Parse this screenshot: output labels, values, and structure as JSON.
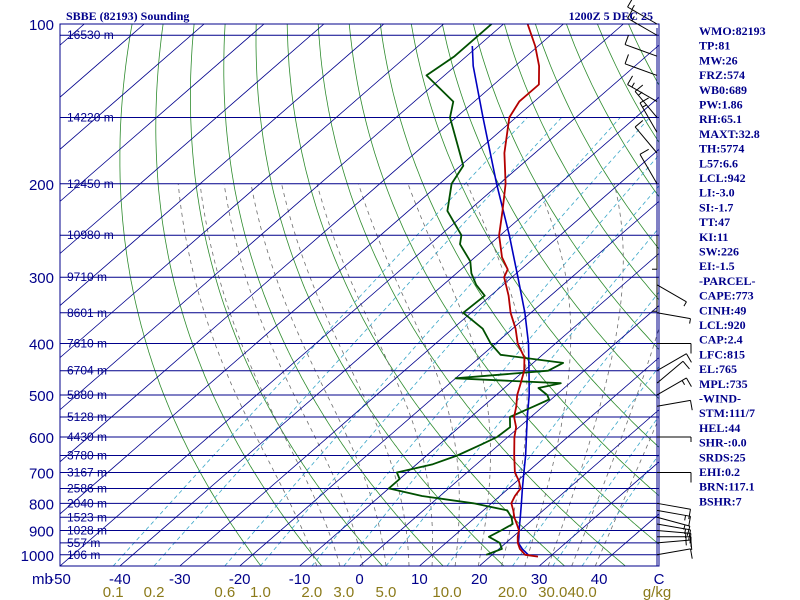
{
  "chart_data": {
    "type": "skew-t",
    "title_left": "SBBE (82193) Sounding",
    "title_right": "1200Z  5 DEC 25",
    "pressure_axis": {
      "ticks": [
        100,
        200,
        300,
        400,
        500,
        600,
        700,
        800,
        900,
        1000
      ],
      "tick_labels": [
        "100",
        "200",
        "300",
        "400",
        "500",
        "600",
        "700",
        "800",
        "900",
        "1000"
      ],
      "unit_label": "mb"
    },
    "temperature_axis": {
      "ticks": [
        -50,
        -40,
        -30,
        -20,
        -10,
        0,
        10,
        20,
        30,
        40
      ],
      "tick_labels": [
        "-50",
        "-40",
        "-30",
        "-20",
        "-10",
        "0",
        "10",
        "20",
        "30",
        "40"
      ],
      "unit_label": "C",
      "range": [
        -50,
        50
      ]
    },
    "mixing_ratio_axis": {
      "labels": [
        "0.1",
        "0.2",
        "0.6",
        "1.0",
        "2.0",
        "3.0",
        "5.0",
        "10.0",
        "20.0",
        "30.0",
        "40.0"
      ],
      "unit_label": "g/kg"
    },
    "heights": [
      {
        "p": 105,
        "label": "16530 m"
      },
      {
        "p": 150,
        "label": "14220 m"
      },
      {
        "p": 200,
        "label": "12450 m"
      },
      {
        "p": 250,
        "label": "10980 m"
      },
      {
        "p": 300,
        "label": "9710 m"
      },
      {
        "p": 350,
        "label": "8601 m"
      },
      {
        "p": 400,
        "label": "7610 m"
      },
      {
        "p": 450,
        "label": "6704 m"
      },
      {
        "p": 500,
        "label": "5880 m"
      },
      {
        "p": 550,
        "label": "5128 m"
      },
      {
        "p": 600,
        "label": "4430 m"
      },
      {
        "p": 650,
        "label": "3780 m"
      },
      {
        "p": 700,
        "label": "3167 m"
      },
      {
        "p": 750,
        "label": "2586 m"
      },
      {
        "p": 800,
        "label": "2040 m"
      },
      {
        "p": 850,
        "label": "1523 m"
      },
      {
        "p": 900,
        "label": "1028 m"
      },
      {
        "p": 950,
        "label": "557 m"
      },
      {
        "p": 1000,
        "label": "106 m"
      }
    ],
    "temperature_profile": [
      {
        "p": 1008,
        "t": 28.0
      },
      {
        "p": 1000,
        "t": 25.5
      },
      {
        "p": 975,
        "t": 23.5
      },
      {
        "p": 950,
        "t": 22.0
      },
      {
        "p": 925,
        "t": 20.8
      },
      {
        "p": 900,
        "t": 19.8
      },
      {
        "p": 875,
        "t": 18.2
      },
      {
        "p": 850,
        "t": 16.5
      },
      {
        "p": 825,
        "t": 15.0
      },
      {
        "p": 800,
        "t": 13.3
      },
      {
        "p": 775,
        "t": 12.5
      },
      {
        "p": 750,
        "t": 12.0
      },
      {
        "p": 725,
        "t": 10.2
      },
      {
        "p": 700,
        "t": 8.0
      },
      {
        "p": 650,
        "t": 4.6
      },
      {
        "p": 600,
        "t": 1.1
      },
      {
        "p": 575,
        "t": -0.5
      },
      {
        "p": 550,
        "t": -2.8
      },
      {
        "p": 525,
        "t": -4.5
      },
      {
        "p": 500,
        "t": -6.5
      },
      {
        "p": 475,
        "t": -8.2
      },
      {
        "p": 450,
        "t": -10.0
      },
      {
        "p": 425,
        "t": -12.5
      },
      {
        "p": 400,
        "t": -16.3
      },
      {
        "p": 375,
        "t": -19.5
      },
      {
        "p": 350,
        "t": -23.4
      },
      {
        "p": 325,
        "t": -27.0
      },
      {
        "p": 300,
        "t": -31.3
      },
      {
        "p": 290,
        "t": -32.2
      },
      {
        "p": 275,
        "t": -35.5
      },
      {
        "p": 250,
        "t": -40.2
      },
      {
        "p": 225,
        "t": -44.3
      },
      {
        "p": 200,
        "t": -49.0
      },
      {
        "p": 175,
        "t": -55.1
      },
      {
        "p": 150,
        "t": -61.1
      },
      {
        "p": 140,
        "t": -62.5
      },
      {
        "p": 130,
        "t": -62.5
      },
      {
        "p": 120,
        "t": -66.0
      },
      {
        "p": 110,
        "t": -70.5
      },
      {
        "p": 100,
        "t": -76.0
      }
    ],
    "dewpoint_profile": [
      {
        "p": 1000,
        "t": 19.0
      },
      {
        "p": 975,
        "t": 20.5
      },
      {
        "p": 950,
        "t": 19.0
      },
      {
        "p": 925,
        "t": 16.0
      },
      {
        "p": 900,
        "t": 16.8
      },
      {
        "p": 875,
        "t": 17.5
      },
      {
        "p": 850,
        "t": 16.0
      },
      {
        "p": 825,
        "t": 14.0
      },
      {
        "p": 800,
        "t": 7.0
      },
      {
        "p": 775,
        "t": -3.0
      },
      {
        "p": 750,
        "t": -10.0
      },
      {
        "p": 720,
        "t": -10.0
      },
      {
        "p": 700,
        "t": -11.7
      },
      {
        "p": 675,
        "t": -7.3
      },
      {
        "p": 650,
        "t": -4.9
      },
      {
        "p": 620,
        "t": -3.0
      },
      {
        "p": 600,
        "t": -1.8
      },
      {
        "p": 575,
        "t": -1.5
      },
      {
        "p": 550,
        "t": -3.5
      },
      {
        "p": 525,
        "t": -1.5
      },
      {
        "p": 510,
        "t": -0.3
      },
      {
        "p": 500,
        "t": -1.5
      },
      {
        "p": 485,
        "t": -4.3
      },
      {
        "p": 475,
        "t": -1.5
      },
      {
        "p": 465,
        "t": -20.0
      },
      {
        "p": 450,
        "t": -6.0
      },
      {
        "p": 435,
        "t": -5.0
      },
      {
        "p": 420,
        "t": -17.0
      },
      {
        "p": 400,
        "t": -20.8
      },
      {
        "p": 375,
        "t": -25.0
      },
      {
        "p": 350,
        "t": -31.3
      },
      {
        "p": 325,
        "t": -31.0
      },
      {
        "p": 310,
        "t": -34.5
      },
      {
        "p": 295,
        "t": -37.5
      },
      {
        "p": 280,
        "t": -40.0
      },
      {
        "p": 260,
        "t": -45.0
      },
      {
        "p": 250,
        "t": -46.5
      },
      {
        "p": 225,
        "t": -53.5
      },
      {
        "p": 200,
        "t": -58.0
      },
      {
        "p": 185,
        "t": -59.5
      },
      {
        "p": 150,
        "t": -71.0
      },
      {
        "p": 140,
        "t": -73.5
      },
      {
        "p": 125,
        "t": -83.0
      },
      {
        "p": 115,
        "t": -82.0
      },
      {
        "p": 100,
        "t": -82.0
      }
    ],
    "parcel_profile": [
      {
        "p": 1000,
        "t": 26.0
      },
      {
        "p": 975,
        "t": 23.9
      },
      {
        "p": 950,
        "t": 22.1
      },
      {
        "p": 925,
        "t": 21.0
      },
      {
        "p": 900,
        "t": 19.8
      },
      {
        "p": 850,
        "t": 17.5
      },
      {
        "p": 800,
        "t": 15.0
      },
      {
        "p": 750,
        "t": 12.3
      },
      {
        "p": 700,
        "t": 9.5
      },
      {
        "p": 650,
        "t": 6.5
      },
      {
        "p": 600,
        "t": 3.1
      },
      {
        "p": 550,
        "t": -0.6
      },
      {
        "p": 500,
        "t": -4.5
      },
      {
        "p": 450,
        "t": -9.2
      },
      {
        "p": 400,
        "t": -14.5
      },
      {
        "p": 350,
        "t": -21.0
      },
      {
        "p": 300,
        "t": -29.0
      },
      {
        "p": 250,
        "t": -38.5
      },
      {
        "p": 200,
        "t": -50.5
      },
      {
        "p": 150,
        "t": -65.5
      },
      {
        "p": 120,
        "t": -77.0
      },
      {
        "p": 110,
        "t": -81.0
      }
    ],
    "wind_barbs": [
      {
        "p": 1000,
        "dir": 80,
        "spd": 10
      },
      {
        "p": 950,
        "dir": 85,
        "spd": 15
      },
      {
        "p": 925,
        "dir": 90,
        "spd": 15
      },
      {
        "p": 900,
        "dir": 95,
        "spd": 15
      },
      {
        "p": 875,
        "dir": 100,
        "spd": 15
      },
      {
        "p": 850,
        "dir": 105,
        "spd": 15
      },
      {
        "p": 825,
        "dir": 100,
        "spd": 15
      },
      {
        "p": 800,
        "dir": 100,
        "spd": 10
      },
      {
        "p": 700,
        "dir": 90,
        "spd": 10
      },
      {
        "p": 600,
        "dir": 90,
        "spd": 5
      },
      {
        "p": 525,
        "dir": 80,
        "spd": 10
      },
      {
        "p": 500,
        "dir": 60,
        "spd": 15
      },
      {
        "p": 475,
        "dir": 50,
        "spd": 10
      },
      {
        "p": 450,
        "dir": 60,
        "spd": 10
      },
      {
        "p": 400,
        "dir": 90,
        "spd": 10
      },
      {
        "p": 350,
        "dir": 100,
        "spd": 5
      },
      {
        "p": 310,
        "dir": 120,
        "spd": 5
      },
      {
        "p": 300,
        "dir": 180,
        "spd": 5
      },
      {
        "p": 250,
        "dir": 180,
        "spd": 5
      },
      {
        "p": 200,
        "dir": 330,
        "spd": 10
      },
      {
        "p": 175,
        "dir": 320,
        "spd": 10
      },
      {
        "p": 160,
        "dir": 330,
        "spd": 15
      },
      {
        "p": 150,
        "dir": 320,
        "spd": 15
      },
      {
        "p": 140,
        "dir": 300,
        "spd": 15
      },
      {
        "p": 125,
        "dir": 290,
        "spd": 10
      },
      {
        "p": 115,
        "dir": 290,
        "spd": 10
      },
      {
        "p": 105,
        "dir": 300,
        "spd": 15
      },
      {
        "p": 100,
        "dir": 300,
        "spd": 15
      }
    ],
    "indices": [
      "WMO:82193",
      "TP:81",
      "MW:26",
      "FRZ:574",
      "WB0:689",
      "PW:1.86",
      "RH:65.1",
      "MAXT:32.8",
      "TH:5774",
      "L57:6.6",
      "LCL:942",
      "LI:-3.0",
      "SI:-1.7",
      "TT:47",
      "KI:11",
      "SW:226",
      "EI:-1.5",
      "-PARCEL-",
      "CAPE:773",
      "CINH:49",
      "LCL:920",
      "CAP:2.4",
      "LFC:815",
      "EL:765",
      "MPL:735",
      "-WIND-",
      "STM:111/7",
      "HEL:44",
      "SHR-:0.0",
      "SRDS:25",
      "EHI:0.2",
      "BRN:117.1",
      "BSHR:7"
    ],
    "colors": {
      "frame": "#00008b",
      "isobar": "#00008b",
      "isotherm": "#00008b",
      "dry_adiabat": "#2e8b2e",
      "moist_adiabat": "#6e6e6e",
      "mixing_ratio": "#3aa6c8",
      "temperature": "#b40000",
      "dewpoint": "#005000",
      "parcel": "#0000c0",
      "wind_barb": "#000000",
      "mixing_label": "#8b7a1a"
    }
  }
}
